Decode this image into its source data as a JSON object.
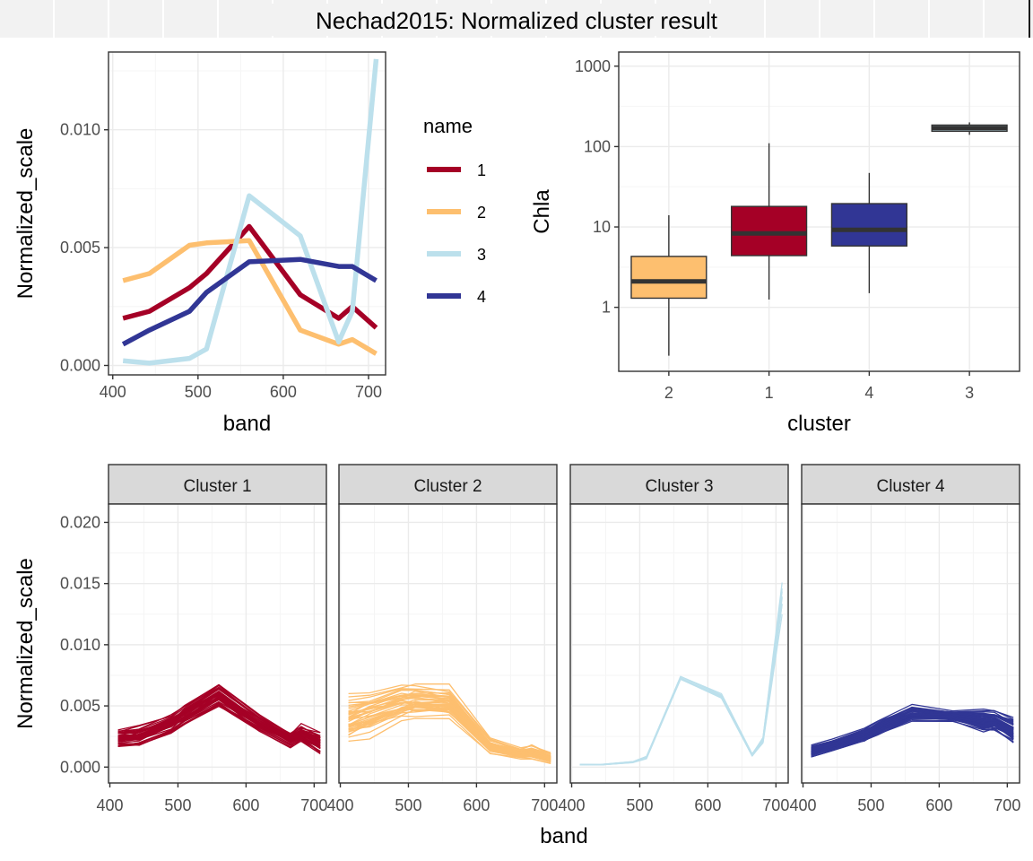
{
  "title": "Nechad2015: Normalized cluster result",
  "colors": {
    "1": "#a50026",
    "2": "#fdbf6f",
    "3": "#bce0ec",
    "4": "#313695"
  },
  "chart_data": [
    {
      "id": "mean-spectra",
      "type": "line",
      "xlabel": "band",
      "ylabel": "Normalized_scale",
      "xlim": [
        395,
        720
      ],
      "ylim": [
        -0.0004,
        0.0133
      ],
      "xticks": [
        400,
        500,
        600,
        700
      ],
      "yticks": [
        0.0,
        0.005,
        0.01
      ],
      "ytick_labels": [
        "0.000",
        "0.005",
        "0.010"
      ],
      "x": [
        412,
        443,
        490,
        510,
        560,
        620,
        665,
        681,
        709
      ],
      "legend_title": "name",
      "grid": true,
      "series": [
        {
          "name": "1",
          "values": [
            0.002,
            0.0023,
            0.0033,
            0.0039,
            0.0059,
            0.003,
            0.002,
            0.0025,
            0.0016
          ]
        },
        {
          "name": "2",
          "values": [
            0.0036,
            0.0039,
            0.0051,
            0.0052,
            0.0053,
            0.0015,
            0.0009,
            0.0011,
            0.0005
          ]
        },
        {
          "name": "3",
          "values": [
            0.0002,
            0.0001,
            0.0003,
            0.0007,
            0.0072,
            0.0055,
            0.001,
            0.0023,
            0.013
          ]
        },
        {
          "name": "4",
          "values": [
            0.0009,
            0.0015,
            0.0023,
            0.0031,
            0.0044,
            0.0045,
            0.0042,
            0.0042,
            0.0036
          ]
        }
      ]
    },
    {
      "id": "chla-boxplot",
      "type": "boxplot",
      "xlabel": "cluster",
      "ylabel": "Chla",
      "yscale": "log10",
      "ylim": [
        0.16,
        1500
      ],
      "yticks": [
        1,
        10,
        100,
        1000
      ],
      "ytick_labels": [
        "1",
        "10",
        "100",
        "1000"
      ],
      "categories": [
        "2",
        "1",
        "4",
        "3"
      ],
      "boxes": [
        {
          "cluster": "2",
          "min": 0.25,
          "q1": 1.3,
          "median": 2.1,
          "q3": 4.3,
          "max": 14
        },
        {
          "cluster": "1",
          "min": 1.25,
          "q1": 4.4,
          "median": 8.3,
          "q3": 18,
          "max": 110
        },
        {
          "cluster": "4",
          "min": 1.5,
          "q1": 5.8,
          "median": 9.2,
          "q3": 19.5,
          "max": 47
        },
        {
          "cluster": "3",
          "min": 140,
          "q1": 155,
          "median": 170,
          "q3": 185,
          "max": 200
        }
      ]
    },
    {
      "id": "cluster-facets",
      "type": "line",
      "xlabel": "band",
      "ylabel": "Normalized_scale",
      "xlim": [
        398,
        718
      ],
      "ylim": [
        -0.0013,
        0.0215
      ],
      "xticks": [
        400,
        500,
        600,
        700
      ],
      "xtick_labels": [
        "400",
        "500",
        "600",
        "700"
      ],
      "yticks": [
        0.0,
        0.005,
        0.01,
        0.015,
        0.02
      ],
      "ytick_labels": [
        "0.000",
        "0.005",
        "0.010",
        "0.015",
        "0.020"
      ],
      "x": [
        412,
        443,
        490,
        510,
        560,
        620,
        665,
        681,
        709
      ],
      "facets": [
        {
          "label": "Cluster 1",
          "cluster": "1",
          "line_count": 40,
          "mean": [
            0.0023,
            0.0025,
            0.0035,
            0.0042,
            0.0058,
            0.0035,
            0.0022,
            0.0027,
            0.0019
          ],
          "spread": [
            0.0007,
            0.0007,
            0.0007,
            0.0007,
            0.0009,
            0.0006,
            0.0005,
            0.0006,
            0.0008
          ]
        },
        {
          "label": "Cluster 2",
          "cluster": "2",
          "line_count": 40,
          "mean": [
            0.0038,
            0.0043,
            0.0052,
            0.0053,
            0.0052,
            0.0017,
            0.0011,
            0.0012,
            0.0007
          ],
          "spread": [
            0.0014,
            0.0012,
            0.001,
            0.0009,
            0.0009,
            0.0004,
            0.0003,
            0.0004,
            0.0003
          ]
        },
        {
          "label": "Cluster 3",
          "cluster": "3",
          "line_count": 8,
          "mean": [
            0.0002,
            0.0002,
            0.0004,
            0.0008,
            0.0073,
            0.0058,
            0.001,
            0.0022,
            0.014
          ],
          "spread": [
            5e-05,
            5e-05,
            0.0001,
            0.0002,
            0.0003,
            0.0003,
            0.0002,
            0.0004,
            0.003
          ]
        },
        {
          "label": "Cluster 4",
          "cluster": "4",
          "line_count": 50,
          "mean": [
            0.0013,
            0.0018,
            0.0026,
            0.0032,
            0.0044,
            0.0042,
            0.0038,
            0.0038,
            0.003
          ],
          "spread": [
            0.0003,
            0.0003,
            0.0004,
            0.0004,
            0.0004,
            0.0003,
            0.0006,
            0.0006,
            0.0007
          ]
        }
      ]
    }
  ]
}
